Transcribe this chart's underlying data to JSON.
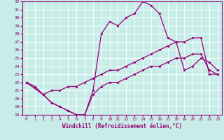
{
  "xlabel": "Windchill (Refroidissement éolien,°C)",
  "bg_color": "#c8ede8",
  "grid_color": "#aadddd",
  "line_color": "#990077",
  "xlim": [
    -0.5,
    23.5
  ],
  "ylim": [
    18,
    32
  ],
  "xticks": [
    0,
    1,
    2,
    3,
    4,
    5,
    6,
    7,
    8,
    9,
    10,
    11,
    12,
    13,
    14,
    15,
    16,
    17,
    18,
    19,
    20,
    21,
    22,
    23
  ],
  "yticks": [
    18,
    19,
    20,
    21,
    22,
    23,
    24,
    25,
    26,
    27,
    28,
    29,
    30,
    31,
    32
  ],
  "line1_x": [
    0,
    1,
    2,
    3,
    4,
    5,
    6,
    7,
    8,
    9,
    10,
    11,
    12,
    13,
    14,
    15,
    16,
    17,
    18,
    19,
    20,
    21,
    22,
    23
  ],
  "line1_y": [
    22.0,
    21.5,
    20.5,
    19.5,
    19.0,
    18.5,
    18.0,
    18.0,
    21.0,
    28.0,
    29.5,
    29.0,
    30.0,
    30.5,
    32.0,
    31.5,
    30.5,
    27.5,
    27.0,
    23.5,
    24.0,
    25.0,
    24.5,
    23.5
  ],
  "line2_x": [
    0,
    2,
    3,
    4,
    5,
    6,
    7,
    8,
    9,
    10,
    11,
    12,
    13,
    14,
    15,
    16,
    17,
    18,
    19,
    20,
    21,
    22,
    23
  ],
  "line2_y": [
    22.0,
    20.5,
    21.0,
    21.0,
    21.5,
    21.5,
    22.0,
    22.5,
    23.0,
    23.5,
    23.5,
    24.0,
    24.5,
    25.0,
    25.5,
    26.0,
    26.5,
    27.0,
    27.0,
    27.5,
    27.5,
    23.0,
    23.0
  ],
  "line3_x": [
    0,
    2,
    3,
    4,
    5,
    6,
    7,
    8,
    9,
    10,
    11,
    12,
    13,
    14,
    15,
    16,
    17,
    18,
    19,
    20,
    21,
    22,
    23
  ],
  "line3_y": [
    22.0,
    20.5,
    19.5,
    19.0,
    18.5,
    18.0,
    18.0,
    20.5,
    21.5,
    22.0,
    22.0,
    22.5,
    23.0,
    23.5,
    24.0,
    24.0,
    24.5,
    25.0,
    25.0,
    25.5,
    25.5,
    23.5,
    23.0
  ]
}
